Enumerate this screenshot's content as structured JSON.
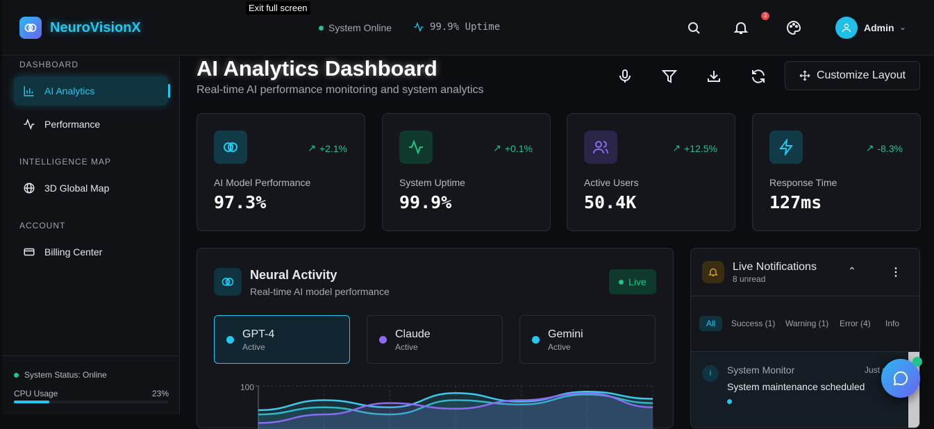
{
  "header": {
    "brand": "NeuroVisionX",
    "tooltip": "Exit full screen",
    "status": "System Online",
    "uptime": "99.9% Uptime",
    "notification_count": "3",
    "user": "Admin"
  },
  "sidebar": {
    "sections": [
      {
        "title": "DASHBOARD",
        "items": [
          {
            "label": "AI Analytics",
            "active": true
          },
          {
            "label": "Performance"
          }
        ]
      },
      {
        "title": "INTELLIGENCE MAP",
        "items": [
          {
            "label": "3D Global Map"
          }
        ]
      },
      {
        "title": "ACCOUNT",
        "items": [
          {
            "label": "Billing Center"
          }
        ]
      }
    ],
    "footer": {
      "status": "System Status: Online",
      "cpu_label": "CPU Usage",
      "cpu_value": "23%",
      "cpu_percent": 23
    }
  },
  "page": {
    "title": "AI Analytics Dashboard",
    "subtitle": "Real-time AI performance monitoring and system analytics",
    "customize": "Customize Layout"
  },
  "stats": [
    {
      "label": "AI Model Performance",
      "value": "97.3%",
      "delta": "+2.1%",
      "color": "#22c8f0"
    },
    {
      "label": "System Uptime",
      "value": "99.9%",
      "delta": "+0.1%",
      "color": "#22c28a"
    },
    {
      "label": "Active Users",
      "value": "50.4K",
      "delta": "+12.5%",
      "color": "#8b6cf0"
    },
    {
      "label": "Response Time",
      "value": "127ms",
      "delta": "-8.3%",
      "color": "#22c8f0"
    }
  ],
  "neural": {
    "title": "Neural Activity",
    "subtitle": "Real-time AI model performance",
    "live": "Live",
    "models": [
      {
        "name": "GPT-4",
        "status": "Active",
        "color": "#22c8f0"
      },
      {
        "name": "Claude",
        "status": "Active",
        "color": "#8b6cf0"
      },
      {
        "name": "Gemini",
        "status": "Active",
        "color": "#22c8f0"
      }
    ]
  },
  "chart_data": {
    "type": "line",
    "ytick_top": "100",
    "ylim": [
      0,
      100
    ],
    "series": [
      {
        "name": "GPT-4",
        "color": "#3cc8ec",
        "values": [
          83,
          90,
          85,
          95,
          89,
          96,
          91
        ]
      },
      {
        "name": "Gemini",
        "color": "#2fb8c8",
        "values": [
          80,
          85,
          80,
          90,
          87,
          94,
          88
        ]
      },
      {
        "name": "Claude",
        "color": "#8b6cf0",
        "values": [
          74,
          80,
          88,
          84,
          90,
          95,
          85
        ]
      }
    ]
  },
  "notifications": {
    "title": "Live Notifications",
    "unread": "8 unread",
    "filters": [
      "All",
      "Success (1)",
      "Warning (1)",
      "Error (4)",
      "Info"
    ],
    "items": [
      {
        "source": "System Monitor",
        "time": "Just now",
        "message": "System maintenance scheduled"
      }
    ]
  }
}
